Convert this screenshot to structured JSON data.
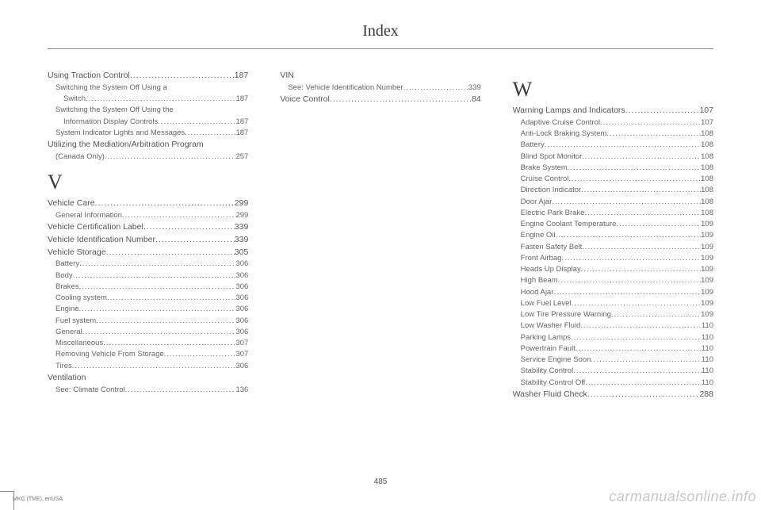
{
  "title": "Index",
  "pageNumber": "485",
  "footerLeft": "MKC (TME), enUSA",
  "watermark": "carmanualsonline.info",
  "columns": [
    {
      "blocks": [
        {
          "type": "entries",
          "items": [
            {
              "lvl": 0,
              "label": "Using Traction Control",
              "pg": "187"
            },
            {
              "lvl": 1,
              "label": "Switching the System Off Using a",
              "nopage": true
            },
            {
              "lvl": 2,
              "label": "Switch",
              "pg": "187"
            },
            {
              "lvl": 1,
              "label": "Switching the System Off Using the",
              "nopage": true
            },
            {
              "lvl": 2,
              "label": "Information Display Controls",
              "pg": "187"
            },
            {
              "lvl": 1,
              "label": "System Indicator Lights and Messages",
              "pg": "187"
            },
            {
              "lvl": 0,
              "label": "Utilizing the Mediation/Arbitration Program",
              "nopage": true
            },
            {
              "lvl": 1,
              "label": "(Canada Only)",
              "pg": "257"
            }
          ]
        },
        {
          "type": "letter",
          "text": "V"
        },
        {
          "type": "entries",
          "items": [
            {
              "lvl": 0,
              "label": "Vehicle Care",
              "pg": "299"
            },
            {
              "lvl": 1,
              "label": "General Information",
              "pg": "299"
            },
            {
              "lvl": 0,
              "label": "Vehicle Certification Label",
              "pg": "339"
            },
            {
              "lvl": 0,
              "label": "Vehicle Identification Number",
              "pg": "339"
            },
            {
              "lvl": 0,
              "label": "Vehicle Storage",
              "pg": "305"
            },
            {
              "lvl": 1,
              "label": "Battery",
              "pg": "306"
            },
            {
              "lvl": 1,
              "label": "Body",
              "pg": "306"
            },
            {
              "lvl": 1,
              "label": "Brakes",
              "pg": "306"
            },
            {
              "lvl": 1,
              "label": "Cooling system",
              "pg": "306"
            },
            {
              "lvl": 1,
              "label": "Engine",
              "pg": "306"
            },
            {
              "lvl": 1,
              "label": "Fuel system",
              "pg": "306"
            },
            {
              "lvl": 1,
              "label": "General",
              "pg": "306"
            },
            {
              "lvl": 1,
              "label": "Miscellaneous",
              "pg": "307"
            },
            {
              "lvl": 1,
              "label": "Removing Vehicle From Storage",
              "pg": "307"
            },
            {
              "lvl": 1,
              "label": "Tires",
              "pg": "306"
            },
            {
              "lvl": 0,
              "label": "Ventilation",
              "nopage": true
            },
            {
              "lvl": 1,
              "label": "See: Climate Control",
              "pg": "136"
            }
          ]
        }
      ]
    },
    {
      "blocks": [
        {
          "type": "entries",
          "items": [
            {
              "lvl": 0,
              "label": "VIN",
              "nopage": true
            },
            {
              "lvl": 1,
              "label": "See: Vehicle Identification Number",
              "pg": "339"
            },
            {
              "lvl": 0,
              "label": "Voice Control",
              "pg": "84"
            }
          ]
        }
      ]
    },
    {
      "blocks": [
        {
          "type": "letter",
          "text": "W"
        },
        {
          "type": "entries",
          "items": [
            {
              "lvl": 0,
              "label": "Warning Lamps and Indicators",
              "pg": "107"
            },
            {
              "lvl": 1,
              "label": "Adaptive Cruise Control",
              "pg": "107"
            },
            {
              "lvl": 1,
              "label": "Anti-Lock Braking System",
              "pg": "108"
            },
            {
              "lvl": 1,
              "label": "Battery",
              "pg": "108"
            },
            {
              "lvl": 1,
              "label": "Blind Spot Monitor",
              "pg": "108"
            },
            {
              "lvl": 1,
              "label": "Brake System",
              "pg": "108"
            },
            {
              "lvl": 1,
              "label": "Cruise Control",
              "pg": "108"
            },
            {
              "lvl": 1,
              "label": "Direction Indicator",
              "pg": "108"
            },
            {
              "lvl": 1,
              "label": "Door Ajar",
              "pg": "108"
            },
            {
              "lvl": 1,
              "label": "Electric Park Brake",
              "pg": "108"
            },
            {
              "lvl": 1,
              "label": "Engine Coolant Temperature",
              "pg": "109"
            },
            {
              "lvl": 1,
              "label": "Engine Oil",
              "pg": "109"
            },
            {
              "lvl": 1,
              "label": "Fasten Safety Belt",
              "pg": "109"
            },
            {
              "lvl": 1,
              "label": "Front Airbag",
              "pg": "109"
            },
            {
              "lvl": 1,
              "label": "Heads Up Display",
              "pg": "109"
            },
            {
              "lvl": 1,
              "label": "High Beam",
              "pg": "109"
            },
            {
              "lvl": 1,
              "label": "Hood Ajar",
              "pg": "109"
            },
            {
              "lvl": 1,
              "label": "Low Fuel Level",
              "pg": "109"
            },
            {
              "lvl": 1,
              "label": "Low Tire Pressure Warning",
              "pg": "109"
            },
            {
              "lvl": 1,
              "label": "Low Washer Fluid",
              "pg": "110"
            },
            {
              "lvl": 1,
              "label": "Parking Lamps",
              "pg": "110"
            },
            {
              "lvl": 1,
              "label": "Powertrain Fault",
              "pg": "110"
            },
            {
              "lvl": 1,
              "label": "Service Engine Soon",
              "pg": "110"
            },
            {
              "lvl": 1,
              "label": "Stability Control",
              "pg": "110"
            },
            {
              "lvl": 1,
              "label": "Stability Control Off",
              "pg": "110"
            },
            {
              "lvl": 0,
              "label": "Washer Fluid Check",
              "pg": "288"
            }
          ]
        }
      ]
    }
  ]
}
